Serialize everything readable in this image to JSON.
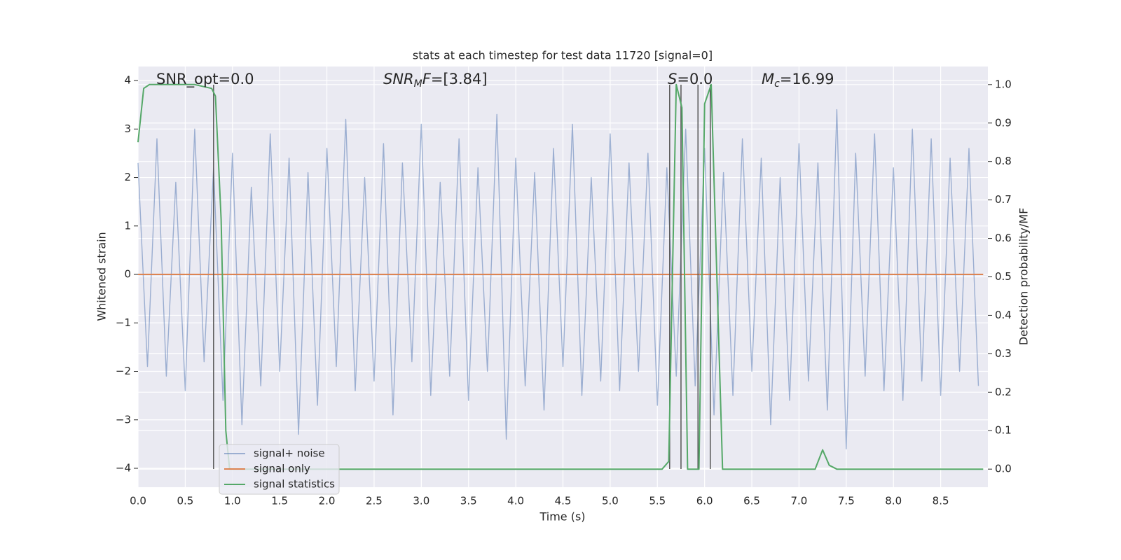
{
  "chart_data": {
    "type": "line",
    "title": "stats at each timestep for test data 11720 [signal=0]",
    "xlabel": "Time (s)",
    "ylabel": "Whitened strain",
    "y2label": "Detection probability/MF",
    "xlim": [
      0,
      9.0
    ],
    "ylim": [
      -4.39,
      4.29
    ],
    "y2lim": [
      -0.047,
      1.047
    ],
    "xticks": [
      {
        "value": 0,
        "label": "0.0"
      },
      {
        "value": 0.5,
        "label": "0.5"
      },
      {
        "value": 1,
        "label": "1.0"
      },
      {
        "value": 1.5,
        "label": "1.5"
      },
      {
        "value": 2,
        "label": "2.0"
      },
      {
        "value": 2.5,
        "label": "2.5"
      },
      {
        "value": 3,
        "label": "3.0"
      },
      {
        "value": 3.5,
        "label": "3.5"
      },
      {
        "value": 4,
        "label": "4.0"
      },
      {
        "value": 4.5,
        "label": "4.5"
      },
      {
        "value": 5,
        "label": "5.0"
      },
      {
        "value": 5.5,
        "label": "5.5"
      },
      {
        "value": 6,
        "label": "6.0"
      },
      {
        "value": 6.5,
        "label": "6.5"
      },
      {
        "value": 7,
        "label": "7.0"
      },
      {
        "value": 7.5,
        "label": "7.5"
      },
      {
        "value": 8,
        "label": "8.0"
      },
      {
        "value": 8.5,
        "label": "8.5"
      }
    ],
    "yticks": [
      {
        "value": -4,
        "label": "−4"
      },
      {
        "value": -3,
        "label": "−3"
      },
      {
        "value": -2,
        "label": "−2"
      },
      {
        "value": -1,
        "label": "−1"
      },
      0,
      1,
      2,
      3,
      4
    ],
    "y2ticks": [
      {
        "value": 0,
        "label": "0.0"
      },
      0.1,
      0.2,
      0.3,
      0.4,
      0.5,
      0.6,
      0.7,
      0.8,
      0.9,
      {
        "value": 1,
        "label": "1.0"
      }
    ],
    "grid": true,
    "series": [
      {
        "name": "signal+ noise",
        "color": "#4c72b0",
        "opacity": 0.5,
        "x": [
          0,
          0.1,
          0.2,
          0.3,
          0.4,
          0.5,
          0.6,
          0.7,
          0.8,
          0.9,
          1,
          1.1,
          1.2,
          1.3,
          1.4,
          1.5,
          1.6,
          1.7,
          1.8,
          1.9,
          2,
          2.1,
          2.2,
          2.3,
          2.4,
          2.5,
          2.6,
          2.7,
          2.8,
          2.9,
          3,
          3.1,
          3.2,
          3.3,
          3.4,
          3.5,
          3.6,
          3.7,
          3.8,
          3.9,
          4,
          4.1,
          4.2,
          4.3,
          4.4,
          4.5,
          4.6,
          4.7,
          4.8,
          4.9,
          5,
          5.1,
          5.2,
          5.3,
          5.4,
          5.5,
          5.6,
          5.7,
          5.8,
          5.9,
          6,
          6.1,
          6.2,
          6.3,
          6.4,
          6.5,
          6.6,
          6.7,
          6.8,
          6.9,
          7,
          7.1,
          7.2,
          7.3,
          7.4,
          7.5,
          7.6,
          7.7,
          7.8,
          7.9,
          8,
          8.1,
          8.2,
          8.3,
          8.4,
          8.5,
          8.6,
          8.7,
          8.8,
          8.9
        ],
        "values": [
          2.3,
          -1.9,
          2.8,
          -2.1,
          1.9,
          -2.4,
          3.0,
          -1.8,
          2.2,
          -2.6,
          2.5,
          -3.1,
          1.8,
          -2.3,
          2.9,
          -2.0,
          2.4,
          -3.3,
          2.1,
          -2.7,
          2.6,
          -1.9,
          3.2,
          -2.4,
          2.0,
          -2.2,
          2.7,
          -2.9,
          2.3,
          -1.8,
          3.1,
          -2.5,
          1.9,
          -2.1,
          2.8,
          -2.6,
          2.2,
          -2.0,
          3.3,
          -3.4,
          2.4,
          -2.3,
          2.1,
          -2.8,
          2.6,
          -1.9,
          3.1,
          -2.5,
          2.0,
          -2.2,
          2.9,
          -2.4,
          2.3,
          -2.0,
          2.5,
          -2.7,
          2.2,
          -2.1,
          3.0,
          -2.3,
          2.6,
          -2.9,
          2.1,
          -2.5,
          2.8,
          -2.0,
          2.4,
          -3.1,
          2.0,
          -2.6,
          2.7,
          -2.2,
          2.3,
          -2.8,
          3.4,
          -3.6,
          2.5,
          -2.1,
          2.9,
          -2.4,
          2.2,
          -2.6,
          3.0,
          -2.2,
          2.8,
          -2.5,
          2.4,
          -2.0,
          2.6,
          -2.3
        ]
      },
      {
        "name": "signal only",
        "color": "#dd8452",
        "x": [
          0,
          8.95
        ],
        "values": [
          0,
          0
        ]
      },
      {
        "name": "signal statistics",
        "color": "#55a868",
        "axis": "y2",
        "x": [
          0,
          0.06,
          0.12,
          0.6,
          0.78,
          0.82,
          0.88,
          0.93,
          0.97,
          5.55,
          5.62,
          5.7,
          5.76,
          5.82,
          5.9,
          5.94,
          6.0,
          6.07,
          6.13,
          6.19,
          7.17,
          7.25,
          7.32,
          7.4,
          8.95
        ],
        "values": [
          0.85,
          0.99,
          1.0,
          1.0,
          0.99,
          0.97,
          0.65,
          0.1,
          0.0,
          0.0,
          0.02,
          1.0,
          0.94,
          0.0,
          0.0,
          0.0,
          0.95,
          1.0,
          0.5,
          0.0,
          0.0,
          0.05,
          0.01,
          0.0,
          0.0
        ]
      }
    ],
    "vlines": {
      "color": "#555555",
      "x": [
        0.8,
        5.63,
        5.75,
        5.93,
        6.06
      ]
    },
    "annotations": [
      {
        "parts": [
          {
            "text": "SNR_opt=0.0"
          }
        ]
      },
      {
        "parts": [
          {
            "text": "SNR",
            "italic": true
          },
          {
            "text": "M",
            "italic": true,
            "sub": true
          },
          {
            "text": "F",
            "italic": true
          },
          {
            "text": "=[3.84]"
          }
        ]
      },
      {
        "parts": [
          {
            "text": "S",
            "italic": true
          },
          {
            "text": "=0.0"
          }
        ]
      },
      {
        "parts": [
          {
            "text": "M",
            "italic": true
          },
          {
            "text": "c",
            "italic": true,
            "sub": true
          },
          {
            "text": "=16.99"
          }
        ]
      }
    ]
  }
}
